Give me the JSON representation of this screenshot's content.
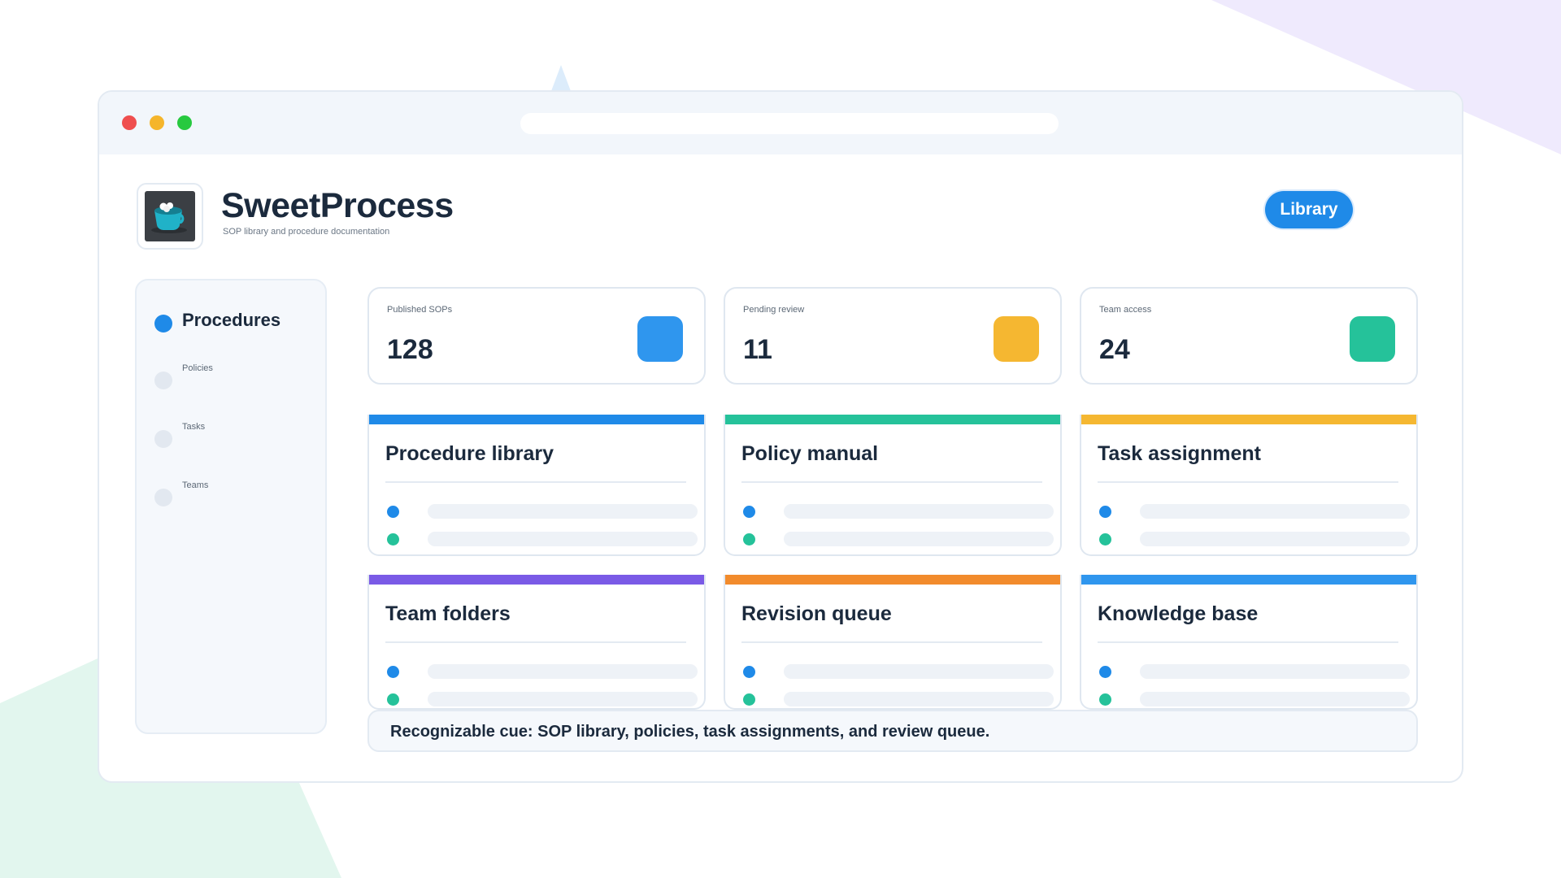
{
  "app": {
    "title": "SweetProcess",
    "subtitle": "SOP library and procedure documentation",
    "library_button": "Library"
  },
  "sidebar": {
    "items": [
      {
        "label": "Procedures",
        "active": true
      },
      {
        "label": "Policies",
        "active": false
      },
      {
        "label": "Tasks",
        "active": false
      },
      {
        "label": "Teams",
        "active": false
      }
    ]
  },
  "stats": [
    {
      "label": "Published SOPs",
      "value": "128",
      "color": "#2f96ee"
    },
    {
      "label": "Pending review",
      "value": "11",
      "color": "#f5b731"
    },
    {
      "label": "Team access",
      "value": "24",
      "color": "#25c29a"
    }
  ],
  "panels": [
    {
      "title": "Procedure library",
      "accent": "#1f8ae8"
    },
    {
      "title": "Policy manual",
      "accent": "#25c29a"
    },
    {
      "title": "Task assignment",
      "accent": "#f5b731"
    },
    {
      "title": "Team folders",
      "accent": "#7a5ae6"
    },
    {
      "title": "Revision queue",
      "accent": "#f28b2c"
    },
    {
      "title": "Knowledge base",
      "accent": "#2f96ee"
    }
  ],
  "row_dot_colors": [
    "#1f8ae8",
    "#25c29a"
  ],
  "cue": "Recognizable cue: SOP library, policies, task assignments, and review queue.",
  "window_controls": [
    "close",
    "minimize",
    "maximize"
  ],
  "colors": {
    "primary": "#1f8ae8",
    "green": "#25c29a",
    "yellow": "#f5b731",
    "purple": "#7a5ae6",
    "orange": "#f28b2c"
  }
}
